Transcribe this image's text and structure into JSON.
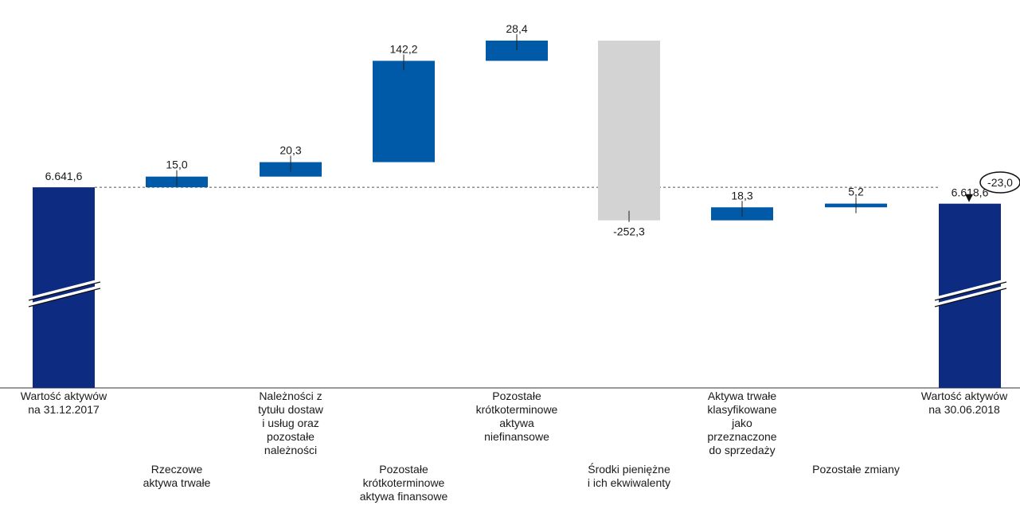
{
  "chart_data": {
    "type": "bar",
    "subtype": "waterfall",
    "categories": [
      "Wartość aktywów\nna 31.12.2017",
      "Rzeczowe\naktywa trwałe",
      "Należności z\ntytułu dostaw\ni usług oraz\npozostałe\nnależności",
      "Pozostałe\nkrótkoterminowe\naktywa finansowe",
      "Pozostałe\nkrótkoterminowe\naktywa\nniefinansowe",
      "Środki pieniężne\ni ich ekwiwalenty",
      "Aktywa trwałe\nklasyfikowane\njako\nprzeznaczone\ndo sprzedaży",
      "Pozostałe zmiany",
      "Wartość aktywów\nna 30.06.2018"
    ],
    "values": [
      6641.6,
      15.0,
      20.3,
      142.2,
      28.4,
      -252.3,
      18.3,
      5.2,
      6618.6
    ],
    "value_labels": [
      "6.641,6",
      "15,0",
      "20,3",
      "142,2",
      "28,4",
      "-252,3",
      "18,3",
      "5,2",
      "6.618,6"
    ],
    "bar_kinds": [
      "total",
      "increase",
      "increase",
      "increase",
      "increase",
      "decrease",
      "increase",
      "increase",
      "total"
    ],
    "change_callout": "-23,0",
    "reference_line": 6641.6,
    "axis_broken": true,
    "ylim": [
      6360,
      6900
    ],
    "colors": {
      "total": "#0d2b80",
      "increase": "#005aa8",
      "decrease": "#d3d3d3",
      "reference_line": "#555555",
      "text": "#1a1a1a"
    }
  }
}
